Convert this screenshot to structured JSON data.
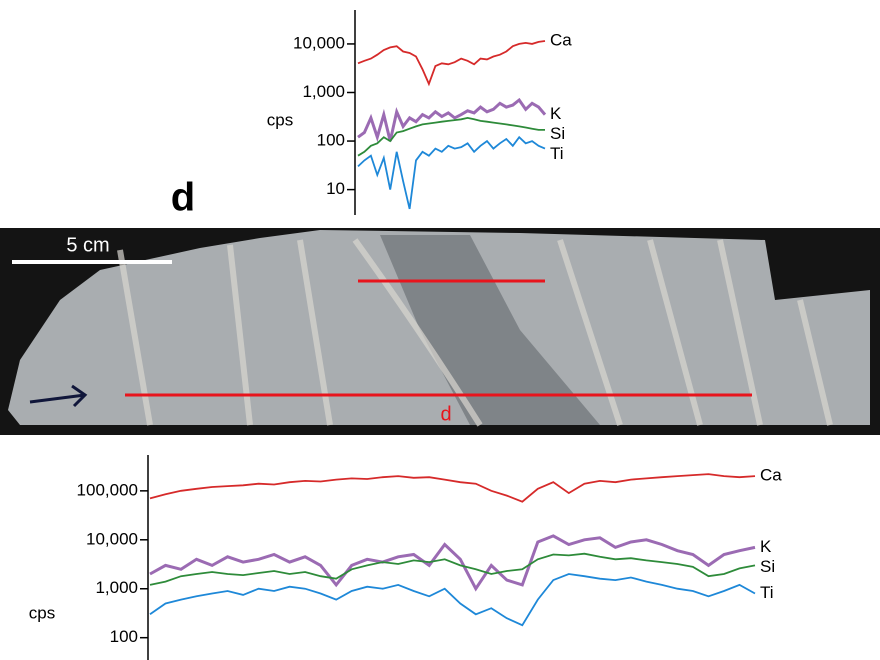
{
  "figure": {
    "panel_label": "d",
    "scale_bar": "5 cm",
    "line_label": "d"
  },
  "chart_data": [
    {
      "type": "line",
      "y_label": "cps",
      "log_scale": true,
      "ylim": [
        3,
        50000
      ],
      "yticks": [
        {
          "value": 10000,
          "label": "10,000"
        },
        {
          "value": 1000,
          "label": "1,000"
        },
        100,
        10
      ],
      "series": [
        {
          "name": "Ca",
          "color": "#d62a2a",
          "values": [
            4000,
            4500,
            5000,
            6000,
            7500,
            8500,
            9000,
            7000,
            6500,
            5500,
            3000,
            1500,
            3500,
            4000,
            3800,
            4200,
            5000,
            4500,
            3800,
            5000,
            4800,
            5500,
            6000,
            7000,
            9000,
            10000,
            10500,
            10000,
            11000,
            11500
          ]
        },
        {
          "name": "K",
          "color": "#9b6bb3",
          "values": [
            120,
            150,
            300,
            120,
            350,
            100,
            400,
            200,
            300,
            250,
            350,
            300,
            400,
            320,
            380,
            300,
            350,
            420,
            380,
            500,
            400,
            450,
            600,
            500,
            550,
            700,
            450,
            600,
            500,
            350
          ]
        },
        {
          "name": "Si",
          "color": "#2e8b3a",
          "values": [
            50,
            60,
            80,
            90,
            120,
            100,
            150,
            160,
            180,
            200,
            220,
            230,
            240,
            250,
            260,
            270,
            280,
            300,
            280,
            260,
            250,
            240,
            230,
            220,
            210,
            200,
            190,
            180,
            170,
            170
          ]
        },
        {
          "name": "Ti",
          "color": "#1e88d8",
          "values": [
            30,
            40,
            50,
            20,
            45,
            10,
            60,
            15,
            4,
            40,
            60,
            50,
            70,
            60,
            80,
            70,
            75,
            90,
            60,
            80,
            100,
            70,
            90,
            110,
            80,
            120,
            90,
            100,
            80,
            70
          ]
        }
      ]
    },
    {
      "type": "line",
      "y_label": "cps",
      "log_scale": true,
      "ylim": [
        35,
        540000
      ],
      "yticks": [
        {
          "value": 100000,
          "label": "100,000"
        },
        {
          "value": 10000,
          "label": "10,000"
        },
        {
          "value": 1000,
          "label": "1,000"
        },
        100
      ],
      "series": [
        {
          "name": "Ca",
          "color": "#d62a2a",
          "values": [
            70000,
            85000,
            100000,
            110000,
            120000,
            125000,
            130000,
            140000,
            135000,
            150000,
            160000,
            155000,
            170000,
            180000,
            175000,
            190000,
            200000,
            185000,
            190000,
            170000,
            150000,
            140000,
            100000,
            80000,
            60000,
            110000,
            150000,
            90000,
            140000,
            160000,
            150000,
            170000,
            180000,
            190000,
            200000,
            210000,
            220000,
            200000,
            190000,
            200000
          ]
        },
        {
          "name": "K",
          "color": "#9b6bb3",
          "values": [
            2000,
            3000,
            2500,
            4000,
            3000,
            4500,
            3500,
            4000,
            5000,
            3500,
            4500,
            3000,
            1200,
            3000,
            4000,
            3500,
            4500,
            5000,
            3000,
            8000,
            4000,
            1000,
            3000,
            1500,
            1200,
            9000,
            12000,
            8000,
            10000,
            11000,
            7000,
            9000,
            10000,
            8000,
            6000,
            5000,
            3000,
            5000,
            6000,
            7000
          ]
        },
        {
          "name": "Si",
          "color": "#2e8b3a",
          "values": [
            1200,
            1400,
            1800,
            2000,
            2200,
            2000,
            1900,
            2100,
            2300,
            2000,
            2200,
            1800,
            1600,
            2500,
            3000,
            3500,
            3200,
            3800,
            3500,
            4000,
            3000,
            2500,
            2000,
            2300,
            2500,
            4000,
            5000,
            4800,
            5200,
            4500,
            4000,
            4200,
            3800,
            3500,
            3200,
            2800,
            1800,
            2000,
            2600,
            3000
          ]
        },
        {
          "name": "Ti",
          "color": "#1e88d8",
          "values": [
            300,
            500,
            600,
            700,
            800,
            900,
            750,
            1000,
            900,
            1100,
            1000,
            800,
            600,
            900,
            1100,
            1000,
            1200,
            900,
            700,
            1000,
            500,
            300,
            400,
            250,
            180,
            600,
            1500,
            2000,
            1800,
            1600,
            1500,
            1700,
            1400,
            1200,
            1000,
            900,
            700,
            900,
            1200,
            800
          ]
        }
      ]
    }
  ]
}
